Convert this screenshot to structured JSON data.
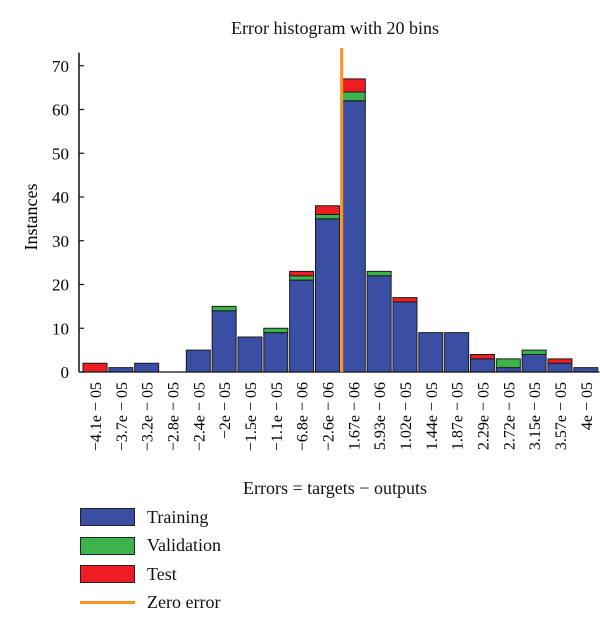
{
  "chart_data": {
    "type": "bar",
    "stacked": true,
    "title": "Error histogram with 20 bins",
    "xlabel": "Errors = targets − outputs",
    "ylabel": "Instances",
    "ylim": [
      0,
      73
    ],
    "yticks": [
      0,
      10,
      20,
      30,
      40,
      50,
      60,
      70
    ],
    "categories": [
      "−4.1e − 05",
      "−3.7e − 05",
      "−3.2e − 05",
      "−2.8e − 05",
      "−2.4e − 05",
      "−2e − 05",
      "−1.5e − 05",
      "−1.1e − 05",
      "−6.8e − 06",
      "−2.6e − 06",
      "1.67e − 06",
      "5.93e − 06",
      "1.02e − 05",
      "1.44e − 05",
      "1.87e − 05",
      "2.29e − 05",
      "2.72e − 05",
      "3.15e − 05",
      "3.57e − 05",
      "4e − 05"
    ],
    "series": [
      {
        "name": "Training",
        "color": "#3a4fa3",
        "values": [
          0,
          1,
          2,
          0,
          5,
          14,
          8,
          9,
          21,
          35,
          62,
          22,
          16,
          9,
          9,
          3,
          1,
          4,
          2,
          1
        ]
      },
      {
        "name": "Validation",
        "color": "#3cb44b",
        "values": [
          0,
          0,
          0,
          0,
          0,
          1,
          0,
          1,
          1,
          1,
          2,
          1,
          0,
          0,
          0,
          0,
          2,
          1,
          0,
          0
        ]
      },
      {
        "name": "Test",
        "color": "#ee1d23",
        "values": [
          2,
          0,
          0,
          0,
          0,
          0,
          0,
          0,
          1,
          2,
          3,
          0,
          1,
          0,
          0,
          1,
          0,
          0,
          1,
          0
        ]
      }
    ],
    "reference_line": {
      "name": "Zero error",
      "color": "#f7941d",
      "x_between": [
        "−2.6e − 06",
        "1.67e − 06"
      ]
    },
    "legend_position": "bottom-left",
    "grid": false
  }
}
